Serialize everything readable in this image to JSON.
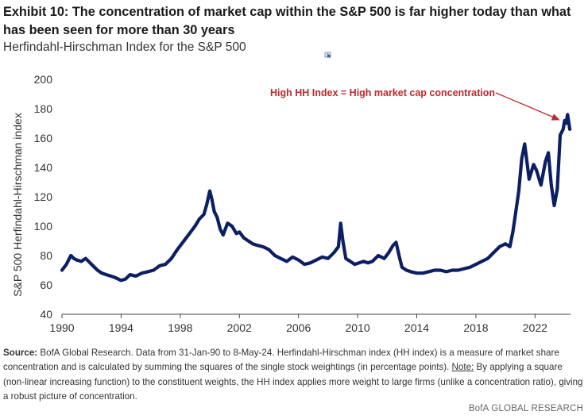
{
  "header": {
    "title": "Exhibit 10: The concentration of market cap within the S&P 500 is far higher today than what has been seen for more than 30 years",
    "subtitle": "Herfindahl-Hirschman Index for the S&P 500"
  },
  "chart_data": {
    "type": "line",
    "title": "Herfindahl-Hirschman Index for the S&P 500",
    "xlabel": "",
    "ylabel": "S&P 500 Herfindahl-Hirschman index",
    "xlim": [
      1990,
      2024.4
    ],
    "ylim": [
      40,
      200
    ],
    "x_ticks": [
      1990,
      1994,
      1998,
      2002,
      2006,
      2010,
      2014,
      2018,
      2022
    ],
    "x_tick_labels": [
      "1990",
      "1994",
      "1998",
      "2002",
      "2006",
      "2010",
      "2014",
      "2018",
      "2022"
    ],
    "y_ticks": [
      40,
      60,
      80,
      100,
      120,
      140,
      160,
      180,
      200
    ],
    "y_tick_labels": [
      "40",
      "60",
      "80",
      "100",
      "120",
      "140",
      "160",
      "180",
      "200"
    ],
    "grid": false,
    "series_color": "#0d1f63",
    "annotation_color": "#c0282d",
    "annotation": {
      "text": "High HH Index = High market cap concentration",
      "points_to": [
        2024.0,
        176
      ]
    },
    "series": [
      {
        "name": "HH index",
        "x": [
          1990.0,
          1990.3,
          1990.6,
          1990.8,
          1991.0,
          1991.3,
          1991.6,
          1992.0,
          1992.4,
          1992.7,
          1993.0,
          1993.3,
          1993.6,
          1994.0,
          1994.3,
          1994.6,
          1995.0,
          1995.4,
          1995.8,
          1996.2,
          1996.6,
          1997.0,
          1997.4,
          1997.8,
          1998.1,
          1998.4,
          1998.7,
          1999.0,
          1999.3,
          1999.6,
          1999.8,
          2000.0,
          2000.15,
          2000.3,
          2000.5,
          2000.7,
          2000.9,
          2001.2,
          2001.5,
          2001.8,
          2002.0,
          2002.3,
          2002.6,
          2002.9,
          2003.2,
          2003.6,
          2004.0,
          2004.4,
          2004.8,
          2005.2,
          2005.6,
          2006.0,
          2006.4,
          2006.8,
          2007.2,
          2007.6,
          2008.0,
          2008.4,
          2008.7,
          2008.85,
          2009.0,
          2009.2,
          2009.5,
          2009.8,
          2010.1,
          2010.4,
          2010.7,
          2011.0,
          2011.4,
          2011.8,
          2012.1,
          2012.4,
          2012.6,
          2012.8,
          2013.0,
          2013.3,
          2013.6,
          2014.0,
          2014.4,
          2014.8,
          2015.2,
          2015.6,
          2016.0,
          2016.4,
          2016.8,
          2017.2,
          2017.6,
          2018.0,
          2018.4,
          2018.8,
          2019.2,
          2019.6,
          2020.0,
          2020.3,
          2020.5,
          2020.7,
          2020.9,
          2021.1,
          2021.3,
          2021.6,
          2021.9,
          2022.1,
          2022.4,
          2022.7,
          2022.9,
          2023.1,
          2023.3,
          2023.5,
          2023.7,
          2023.9,
          2024.0,
          2024.1,
          2024.2,
          2024.35
        ],
        "values": [
          70,
          74,
          80,
          78,
          77,
          76,
          78,
          74,
          70,
          68,
          67,
          66,
          65,
          63,
          64,
          67,
          66,
          68,
          69,
          70,
          73,
          74,
          78,
          84,
          88,
          92,
          96,
          100,
          105,
          108,
          115,
          124,
          118,
          110,
          106,
          98,
          94,
          102,
          100,
          95,
          96,
          92,
          90,
          88,
          87,
          86,
          84,
          80,
          78,
          76,
          79,
          77,
          74,
          75,
          77,
          79,
          78,
          82,
          86,
          102,
          90,
          78,
          76,
          74,
          75,
          76,
          75,
          76,
          80,
          78,
          82,
          87,
          89,
          80,
          72,
          70,
          69,
          68,
          68,
          69,
          70,
          70,
          69,
          70,
          70,
          71,
          72,
          74,
          76,
          78,
          82,
          86,
          88,
          86,
          96,
          110,
          124,
          146,
          156,
          132,
          142,
          138,
          128,
          144,
          150,
          128,
          114,
          125,
          162,
          166,
          172,
          170,
          176,
          166
        ]
      }
    ]
  },
  "footer": {
    "source_label": "Source:",
    "source_text": " BofA Global Research. Data from 31-Jan-90 to 8-May-24. Herfindahl-Hirschman index (HH index) is a measure of market share concentration and is calculated by summing the squares of the single stock weightings (in percentage points). ",
    "note_label": "Note:",
    "note_text": " By applying a square (non-linear increasing function) to the constituent weights, the HH index applies more weight to large firms (unlike a concentration ratio), giving a robust picture of concentration.",
    "brand": "BofA GLOBAL RESEARCH"
  }
}
